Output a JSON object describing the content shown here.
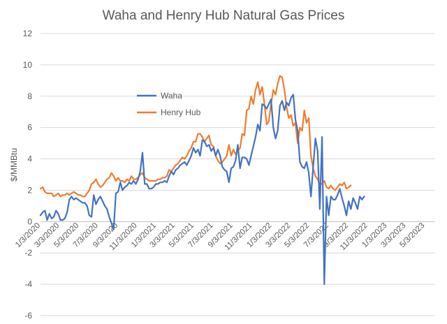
{
  "chart_data": {
    "type": "line",
    "title": "Waha and Henry Hub Natural Gas Prices",
    "xlabel": "",
    "ylabel": "$/MMBtu",
    "ylim": [
      -6,
      12
    ],
    "yticks": [
      -6,
      -4,
      -2,
      0,
      2,
      4,
      6,
      8,
      10,
      12
    ],
    "ytick_labels": [
      "-6",
      "-4",
      "-2",
      "0",
      "2",
      "4",
      "6",
      "8",
      "10",
      "12"
    ],
    "x_start": 0,
    "x_end": 178,
    "x_ticks": [
      {
        "label": "1/3/2020",
        "x": 0
      },
      {
        "label": "3/3/2020",
        "x": 8.6
      },
      {
        "label": "5/3/2020",
        "x": 17.4
      },
      {
        "label": "7/3/2020",
        "x": 26.1
      },
      {
        "label": "9/3/2020",
        "x": 35
      },
      {
        "label": "11/3/2020",
        "x": 43.7
      },
      {
        "label": "1/3/2021",
        "x": 52.3
      },
      {
        "label": "3/3/2021",
        "x": 60.7
      },
      {
        "label": "5/3/2021",
        "x": 69.3
      },
      {
        "label": "7/3/2021",
        "x": 78
      },
      {
        "label": "9/3/2021",
        "x": 86.9
      },
      {
        "label": "11/3/2021",
        "x": 95.6
      },
      {
        "label": "1/3/2022",
        "x": 104.4
      },
      {
        "label": "3/3/2022",
        "x": 112.9
      },
      {
        "label": "5/3/2022",
        "x": 121.4
      },
      {
        "label": "7/3/2022",
        "x": 130.1
      },
      {
        "label": "9/3/2022",
        "x": 139
      },
      {
        "label": "11/3/2022",
        "x": 147.7
      },
      {
        "label": "1/3/2023",
        "x": 156.4
      },
      {
        "label": "3/3/2023",
        "x": 164.9
      },
      {
        "label": "5/3/2023",
        "x": 173.4
      }
    ],
    "grid": true,
    "legend_position": "center-left",
    "series": [
      {
        "name": "Waha",
        "color": "#4472C4",
        "points": [
          [
            0,
            0.4
          ],
          [
            1,
            0.6
          ],
          [
            2,
            0.7
          ],
          [
            3,
            0.1
          ],
          [
            4,
            0.5
          ],
          [
            5,
            0.2
          ],
          [
            6,
            0.3
          ],
          [
            7,
            0.7
          ],
          [
            8,
            0.5
          ],
          [
            9,
            0.1
          ],
          [
            10,
            0.1
          ],
          [
            11,
            0.2
          ],
          [
            12,
            0.6
          ],
          [
            13,
            1.4
          ],
          [
            14,
            1.6
          ],
          [
            15,
            1.4
          ],
          [
            16,
            1.5
          ],
          [
            17,
            1.4
          ],
          [
            18,
            1.3
          ],
          [
            19,
            1.2
          ],
          [
            20,
            1.2
          ],
          [
            21,
            1
          ],
          [
            22,
            0.4
          ],
          [
            23,
            0.3
          ],
          [
            24,
            1.7
          ],
          [
            25,
            1.1
          ],
          [
            26,
            1.4
          ],
          [
            27,
            1.6
          ],
          [
            28,
            1.3
          ],
          [
            29,
            1
          ],
          [
            30,
            0.8
          ],
          [
            31,
            0.3
          ],
          [
            32,
            -0.1
          ],
          [
            33,
            -0.5
          ],
          [
            34,
            1.8
          ],
          [
            35,
            1.9
          ],
          [
            36,
            2.5
          ],
          [
            37,
            2
          ],
          [
            38,
            2.2
          ],
          [
            39,
            2.3
          ],
          [
            40,
            2.5
          ],
          [
            41,
            2.4
          ],
          [
            42,
            2.6
          ],
          [
            43,
            2.4
          ],
          [
            44,
            2.7
          ],
          [
            45,
            3.2
          ],
          [
            46,
            4.4
          ],
          [
            47,
            2.4
          ],
          [
            48,
            2.4
          ],
          [
            49,
            2.1
          ],
          [
            50,
            2.1
          ],
          [
            51,
            2.2
          ],
          [
            52,
            2.4
          ],
          [
            53,
            2.4
          ],
          [
            54,
            2.5
          ],
          [
            55,
            2.5
          ],
          [
            56,
            2.6
          ],
          [
            57,
            2.5
          ],
          [
            58,
            2.9
          ],
          [
            59,
            3.2
          ],
          [
            60,
            3
          ],
          [
            61,
            3.3
          ],
          [
            62,
            3.4
          ],
          [
            63,
            3.6
          ],
          [
            64,
            3.7
          ],
          [
            65,
            3.8
          ],
          [
            66,
            3.6
          ],
          [
            67,
            3.9
          ],
          [
            68,
            4.2
          ],
          [
            69,
            4.7
          ],
          [
            70,
            4.4
          ],
          [
            71,
            4.6
          ],
          [
            72,
            4.2
          ],
          [
            73,
            5.2
          ],
          [
            74,
            5.1
          ],
          [
            75,
            4.8
          ],
          [
            76,
            4.9
          ],
          [
            77,
            4.5
          ],
          [
            78,
            4.7
          ],
          [
            79,
            4.2
          ],
          [
            80,
            4.6
          ],
          [
            81,
            4.2
          ],
          [
            82,
            3.5
          ],
          [
            83,
            3.3
          ],
          [
            84,
            3.2
          ],
          [
            85,
            2.5
          ],
          [
            86,
            3.4
          ],
          [
            87,
            3.5
          ],
          [
            88,
            3.9
          ],
          [
            89,
            4.9
          ],
          [
            90,
            3.4
          ],
          [
            91,
            4.1
          ],
          [
            92,
            4.1
          ],
          [
            93,
            4
          ],
          [
            94,
            3.6
          ],
          [
            95,
            4.2
          ],
          [
            96,
            4.8
          ],
          [
            97,
            5.4
          ],
          [
            98,
            6.2
          ],
          [
            99,
            5.8
          ],
          [
            100,
            7.5
          ],
          [
            101,
            7.4
          ],
          [
            102,
            7.2
          ],
          [
            103,
            7.5
          ],
          [
            104,
            7.8
          ],
          [
            105,
            6
          ],
          [
            106,
            5.3
          ],
          [
            107,
            5.8
          ],
          [
            108,
            7.4
          ],
          [
            109,
            7.7
          ],
          [
            110,
            7.1
          ],
          [
            111,
            7.6
          ],
          [
            112,
            7.4
          ],
          [
            113,
            7.9
          ],
          [
            114,
            8.1
          ],
          [
            115,
            6.5
          ],
          [
            116,
            5.8
          ],
          [
            117,
            3.8
          ],
          [
            118,
            3.5
          ],
          [
            119,
            3.4
          ],
          [
            120,
            3.8
          ],
          [
            121,
            3.1
          ],
          [
            122,
            1.6
          ],
          [
            123,
            3.5
          ],
          [
            124,
            5.3
          ],
          [
            125,
            4.5
          ],
          [
            126,
            0.8
          ],
          [
            127,
            5.4
          ],
          [
            128,
            -4
          ],
          [
            129,
            1.6
          ],
          [
            130,
            0.4
          ],
          [
            131,
            1.6
          ],
          [
            132,
            1.4
          ],
          [
            133,
            1.4
          ],
          [
            134,
            1.7
          ],
          [
            135,
            2.1
          ],
          [
            136,
            1.5
          ],
          [
            137,
            1
          ],
          [
            138,
            0.4
          ],
          [
            139,
            1.3
          ],
          [
            140,
            0.8
          ],
          [
            141,
            1.5
          ],
          [
            142,
            1.2
          ],
          [
            143,
            0.8
          ],
          [
            144,
            1.6
          ],
          [
            145,
            1.4
          ],
          [
            146,
            1.6
          ]
        ]
      },
      {
        "name": "Henry Hub",
        "color": "#ED7D31",
        "points": [
          [
            0,
            2.1
          ],
          [
            1,
            2.2
          ],
          [
            2,
            1.9
          ],
          [
            3,
            1.8
          ],
          [
            4,
            1.8
          ],
          [
            5,
            1.8
          ],
          [
            6,
            1.6
          ],
          [
            7,
            1.7
          ],
          [
            8,
            1.8
          ],
          [
            9,
            1.6
          ],
          [
            10,
            1.7
          ],
          [
            11,
            1.7
          ],
          [
            12,
            1.8
          ],
          [
            13,
            1.7
          ],
          [
            14,
            1.8
          ],
          [
            15,
            1.9
          ],
          [
            16,
            1.8
          ],
          [
            17,
            1.7
          ],
          [
            18,
            1.7
          ],
          [
            19,
            1.6
          ],
          [
            20,
            1.6
          ],
          [
            21,
            1.8
          ],
          [
            22,
            2
          ],
          [
            23,
            2.4
          ],
          [
            24,
            2.5
          ],
          [
            25,
            2.7
          ],
          [
            26,
            2.4
          ],
          [
            27,
            2.2
          ],
          [
            28,
            2.3
          ],
          [
            29,
            2.5
          ],
          [
            30,
            2.7
          ],
          [
            31,
            2.8
          ],
          [
            32,
            3.1
          ],
          [
            33,
            2.9
          ],
          [
            34,
            2.6
          ],
          [
            35,
            2.8
          ],
          [
            36,
            2.6
          ],
          [
            37,
            2.6
          ],
          [
            38,
            2.5
          ],
          [
            39,
            2.7
          ],
          [
            40,
            2.6
          ],
          [
            41,
            2.9
          ],
          [
            42,
            2.7
          ],
          [
            43,
            2.7
          ],
          [
            44,
            2.8
          ],
          [
            45,
            3
          ],
          [
            46,
            3.1
          ],
          [
            47,
            2.8
          ],
          [
            48,
            2.7
          ],
          [
            49,
            2.6
          ],
          [
            50,
            2.6
          ],
          [
            51,
            2.6
          ],
          [
            52,
            2.6
          ],
          [
            53,
            2.7
          ],
          [
            54,
            2.7
          ],
          [
            55,
            2.8
          ],
          [
            56,
            2.8
          ],
          [
            57,
            2.9
          ],
          [
            58,
            3.3
          ],
          [
            59,
            3.2
          ],
          [
            60,
            3.4
          ],
          [
            61,
            3.6
          ],
          [
            62,
            3.7
          ],
          [
            63,
            3.9
          ],
          [
            64,
            4.1
          ],
          [
            65,
            4
          ],
          [
            66,
            4.2
          ],
          [
            67,
            4.5
          ],
          [
            68,
            4.7
          ],
          [
            69,
            5.1
          ],
          [
            70,
            5.1
          ],
          [
            71,
            5.6
          ],
          [
            72,
            5.6
          ],
          [
            73,
            5.4
          ],
          [
            74,
            5.1
          ],
          [
            75,
            5.3
          ],
          [
            76,
            5.5
          ],
          [
            77,
            4.9
          ],
          [
            78,
            4.8
          ],
          [
            79,
            4.2
          ],
          [
            80,
            3.9
          ],
          [
            81,
            3.7
          ],
          [
            82,
            3.8
          ],
          [
            83,
            4
          ],
          [
            84,
            4.2
          ],
          [
            85,
            4.9
          ],
          [
            86,
            4.2
          ],
          [
            87,
            4.6
          ],
          [
            88,
            4.3
          ],
          [
            89,
            4.5
          ],
          [
            90,
            4.7
          ],
          [
            91,
            5.6
          ],
          [
            92,
            5.5
          ],
          [
            93,
            7.1
          ],
          [
            94,
            7.2
          ],
          [
            95,
            8
          ],
          [
            96,
            7.5
          ],
          [
            97,
            8.4
          ],
          [
            98,
            8.9
          ],
          [
            99,
            8.1
          ],
          [
            100,
            8.6
          ],
          [
            101,
            7.5
          ],
          [
            102,
            6.2
          ],
          [
            103,
            6.4
          ],
          [
            104,
            7.5
          ],
          [
            105,
            8.4
          ],
          [
            106,
            8.1
          ],
          [
            107,
            8.8
          ],
          [
            108,
            9.3
          ],
          [
            109,
            9.2
          ],
          [
            110,
            8.4
          ],
          [
            111,
            7.3
          ],
          [
            112,
            6.6
          ],
          [
            113,
            6.8
          ],
          [
            114,
            6.1
          ],
          [
            115,
            6.3
          ],
          [
            116,
            5
          ],
          [
            117,
            6
          ],
          [
            118,
            5.8
          ],
          [
            119,
            7.1
          ],
          [
            120,
            6.3
          ],
          [
            121,
            6.6
          ],
          [
            122,
            4.2
          ],
          [
            123,
            3.4
          ],
          [
            124,
            2.9
          ],
          [
            125,
            2.7
          ],
          [
            126,
            2.4
          ],
          [
            127,
            2.4
          ],
          [
            128,
            2.6
          ],
          [
            129,
            2.2
          ],
          [
            130,
            2.1
          ],
          [
            131,
            2.3
          ],
          [
            132,
            2.1
          ],
          [
            133,
            2
          ],
          [
            134,
            2.2
          ],
          [
            135,
            2.4
          ],
          [
            136,
            2.3
          ],
          [
            137,
            2.5
          ],
          [
            138,
            2.1
          ],
          [
            139,
            2.2
          ],
          [
            140,
            2.3
          ]
        ]
      }
    ]
  }
}
